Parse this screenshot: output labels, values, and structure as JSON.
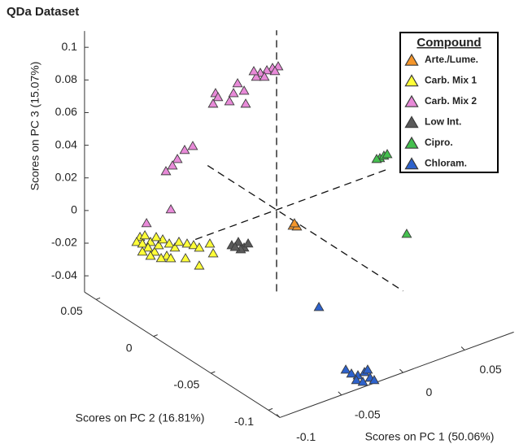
{
  "chart_data": {
    "type": "scatter3d",
    "title": "QDa Dataset",
    "xlabel": "Scores on PC 1 (50.06%)",
    "ylabel": "Scores on PC 2 (16.81%)",
    "zlabel": "Scores on PC 3 (15.07%)",
    "xlim": [
      -0.1,
      0.09
    ],
    "ylim": [
      -0.11,
      0.06
    ],
    "zlim": [
      -0.05,
      0.11
    ],
    "xticks": [
      -0.1,
      -0.05,
      0,
      0.05
    ],
    "yticks": [
      0.05,
      0,
      -0.05,
      -0.1
    ],
    "zticks": [
      -0.04,
      -0.02,
      0,
      0.02,
      0.04,
      0.06,
      0.08,
      0.1
    ],
    "legend_title": "Compound",
    "legend": "upper right",
    "series": [
      {
        "name": "Arte./Lume.",
        "color": "#f5962a",
        "x": [
          0.0132,
          0.0165,
          0.0145
        ],
        "y": [
          0,
          0,
          0
        ],
        "z": [
          -0.0136,
          -0.015,
          -0.0125
        ]
      },
      {
        "name": "Carb. Mix 1",
        "color": "#ffff38",
        "x": [
          -0.083,
          -0.079,
          -0.0857,
          -0.081,
          -0.0744,
          -0.0764,
          -0.0711,
          -0.0678,
          -0.0645,
          -0.0612,
          -0.0592,
          -0.0546,
          -0.0513,
          -0.0447,
          -0.0394,
          -0.0348,
          -0.0262,
          -0.0235,
          -0.0579,
          -0.081,
          -0.0698,
          -0.0348,
          -0.046,
          -0.0658,
          -0.0744
        ],
        "y": [
          0.03,
          0.03,
          0.03,
          0.03,
          0.03,
          0.03,
          0.03,
          0.03,
          0.03,
          0.03,
          0.03,
          0.03,
          0.03,
          0.03,
          0.03,
          0.03,
          0.03,
          0.03,
          0.03,
          0.03,
          0.03,
          0.03,
          0.03,
          0.03,
          0.03
        ],
        "z": [
          -0.0076,
          -0.0077,
          -0.0099,
          -0.0122,
          -0.013,
          -0.0159,
          -0.0199,
          -0.0168,
          -0.0142,
          -0.0251,
          -0.0182,
          -0.0219,
          -0.0193,
          -0.0222,
          -0.0246,
          -0.0274,
          -0.0273,
          -0.034,
          -0.0275,
          -0.0171,
          -0.0113,
          -0.0384,
          -0.0308,
          -0.0253,
          -0.0215
        ]
      },
      {
        "name": "Carb. Mix 2",
        "color": "#e88ad8",
        "x": [
          0.0013,
          -0.0033,
          -0.0079,
          -0.0132,
          -0.0165,
          -0.0099,
          -0.0013,
          -0.0185,
          -0.0317,
          -0.0264,
          -0.035,
          -0.0496,
          -0.0476,
          -0.0383,
          -0.0251,
          -0.0516,
          -0.0681,
          -0.0747,
          -0.0806,
          -0.0899,
          -0.0846,
          -0.0859,
          -0.087
        ],
        "y": [
          0,
          0,
          0,
          0,
          0,
          0,
          0,
          0,
          0,
          0,
          0,
          0,
          0,
          0,
          0,
          0,
          0,
          0,
          0,
          0,
          0,
          0,
          0.02
        ],
        "z": [
          0.0873,
          0.0876,
          0.0874,
          0.0873,
          0.0858,
          0.084,
          0.0851,
          0.0898,
          0.086,
          0.08,
          0.0809,
          0.0849,
          0.0819,
          0.0768,
          0.0717,
          0.079,
          0.0576,
          0.057,
          0.0531,
          0.0482,
          0.0502,
          0.0237,
          0.0065
        ]
      },
      {
        "name": "Low Int.",
        "color": "#5a5a5a",
        "x": [
          -0.0364,
          -0.0311,
          -0.0264,
          -0.0231,
          -0.0291,
          -0.0337
        ],
        "y": [
          0,
          0,
          0,
          0,
          0,
          0
        ],
        "z": [
          -0.0119,
          -0.0114,
          -0.0161,
          -0.0145,
          -0.0164,
          -0.0137
        ]
      },
      {
        "name": "Cipro.",
        "color": "#45c04f",
        "x": [
          0.0839,
          0.0872,
          0.0899,
          0.0813,
          0.0777
        ],
        "y": [
          0,
          0,
          0,
          0,
          -0.03
        ],
        "z": [
          0.0083,
          0.0089,
          0.0091,
          0.0085,
          -0.0228
        ]
      },
      {
        "name": "Chloram.",
        "color": "#2d62cc",
        "x": [
          -0.0123,
          0.0095,
          0.0141,
          0.0194,
          0.0247,
          0.0293,
          0.0181,
          0.0234,
          0.0273,
          0.0326
        ],
        "y": [
          -0.05,
          -0.05,
          -0.05,
          -0.05,
          -0.05,
          -0.05,
          -0.05,
          -0.05,
          -0.05,
          -0.05
        ],
        "z": [
          -0.0338,
          -0.0782,
          -0.0819,
          -0.0844,
          -0.0839,
          -0.0886,
          -0.087,
          -0.0895,
          -0.0831,
          -0.091
        ]
      }
    ]
  }
}
